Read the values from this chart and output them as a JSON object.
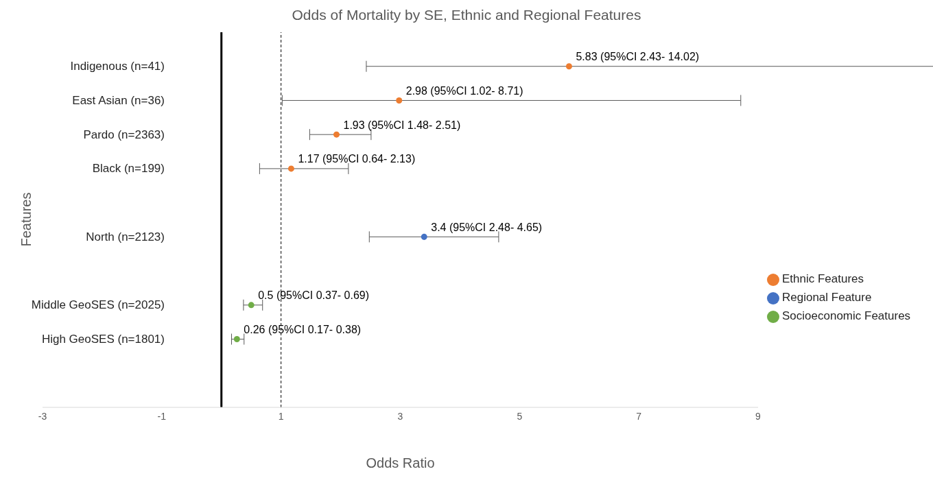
{
  "chart_data": {
    "type": "scatter",
    "title": "Odds of Mortality by SE, Ethnic and Regional Features",
    "xlabel": "Odds Ratio",
    "ylabel": "Features",
    "categories": [
      "Indigenous (n=41)",
      "East Asian (n=36)",
      "Pardo (n=2363)",
      "Black (n=199)",
      null,
      "North (n=2123)",
      null,
      "Middle GeoSES (n=2025)",
      "High GeoSES (n=1801)",
      null
    ],
    "orientation": "horizontal",
    "xlim": [
      -3,
      9
    ],
    "xticks": [
      -3,
      -1,
      1,
      3,
      5,
      7,
      9
    ],
    "marker": "circle",
    "grid": false,
    "legend": "right",
    "ref_lines": [
      {
        "axis": "x",
        "value": 0,
        "color": "#000000",
        "line_style": "solid"
      },
      {
        "axis": "x",
        "value": 1,
        "color": "#000000",
        "line_style": "dashed"
      }
    ],
    "series": [
      {
        "name": "Ethnic Features",
        "color": "#ed7d31",
        "values": [
          5.83,
          2.98,
          1.93,
          1.17,
          null,
          null,
          null,
          null,
          null,
          null
        ],
        "errors": [
          [
            2.43,
            14.02
          ],
          [
            1.02,
            8.71
          ],
          [
            1.48,
            2.51
          ],
          [
            0.64,
            2.13
          ],
          null,
          null,
          null,
          null,
          null,
          null
        ],
        "value_labels": [
          "5.83 (95%CI 2.43- 14.02)",
          "2.98 (95%CI 1.02- 8.71)",
          "1.93 (95%CI 1.48- 2.51)",
          "1.17 (95%CI 0.64- 2.13)",
          null,
          null,
          null,
          null,
          null,
          null
        ]
      },
      {
        "name": "Regional Feature",
        "color": "#4472c4",
        "values": [
          null,
          null,
          null,
          null,
          null,
          3.4,
          null,
          null,
          null,
          null
        ],
        "errors": [
          null,
          null,
          null,
          null,
          null,
          [
            2.48,
            4.65
          ],
          null,
          null,
          null,
          null
        ],
        "value_labels": [
          null,
          null,
          null,
          null,
          null,
          "3.4 (95%CI 2.48- 4.65)",
          null,
          null,
          null,
          null
        ]
      },
      {
        "name": "Socioeconomic Features",
        "color": "#70ad47",
        "values": [
          null,
          null,
          null,
          null,
          null,
          null,
          null,
          0.5,
          0.26,
          null
        ],
        "errors": [
          null,
          null,
          null,
          null,
          null,
          null,
          null,
          [
            0.37,
            0.69
          ],
          [
            0.17,
            0.38
          ],
          null
        ],
        "value_labels": [
          null,
          null,
          null,
          null,
          null,
          null,
          null,
          "0.5 (95%CI 0.37- 0.69)",
          "0.26 (95%CI 0.17- 0.38)",
          null
        ]
      }
    ]
  }
}
